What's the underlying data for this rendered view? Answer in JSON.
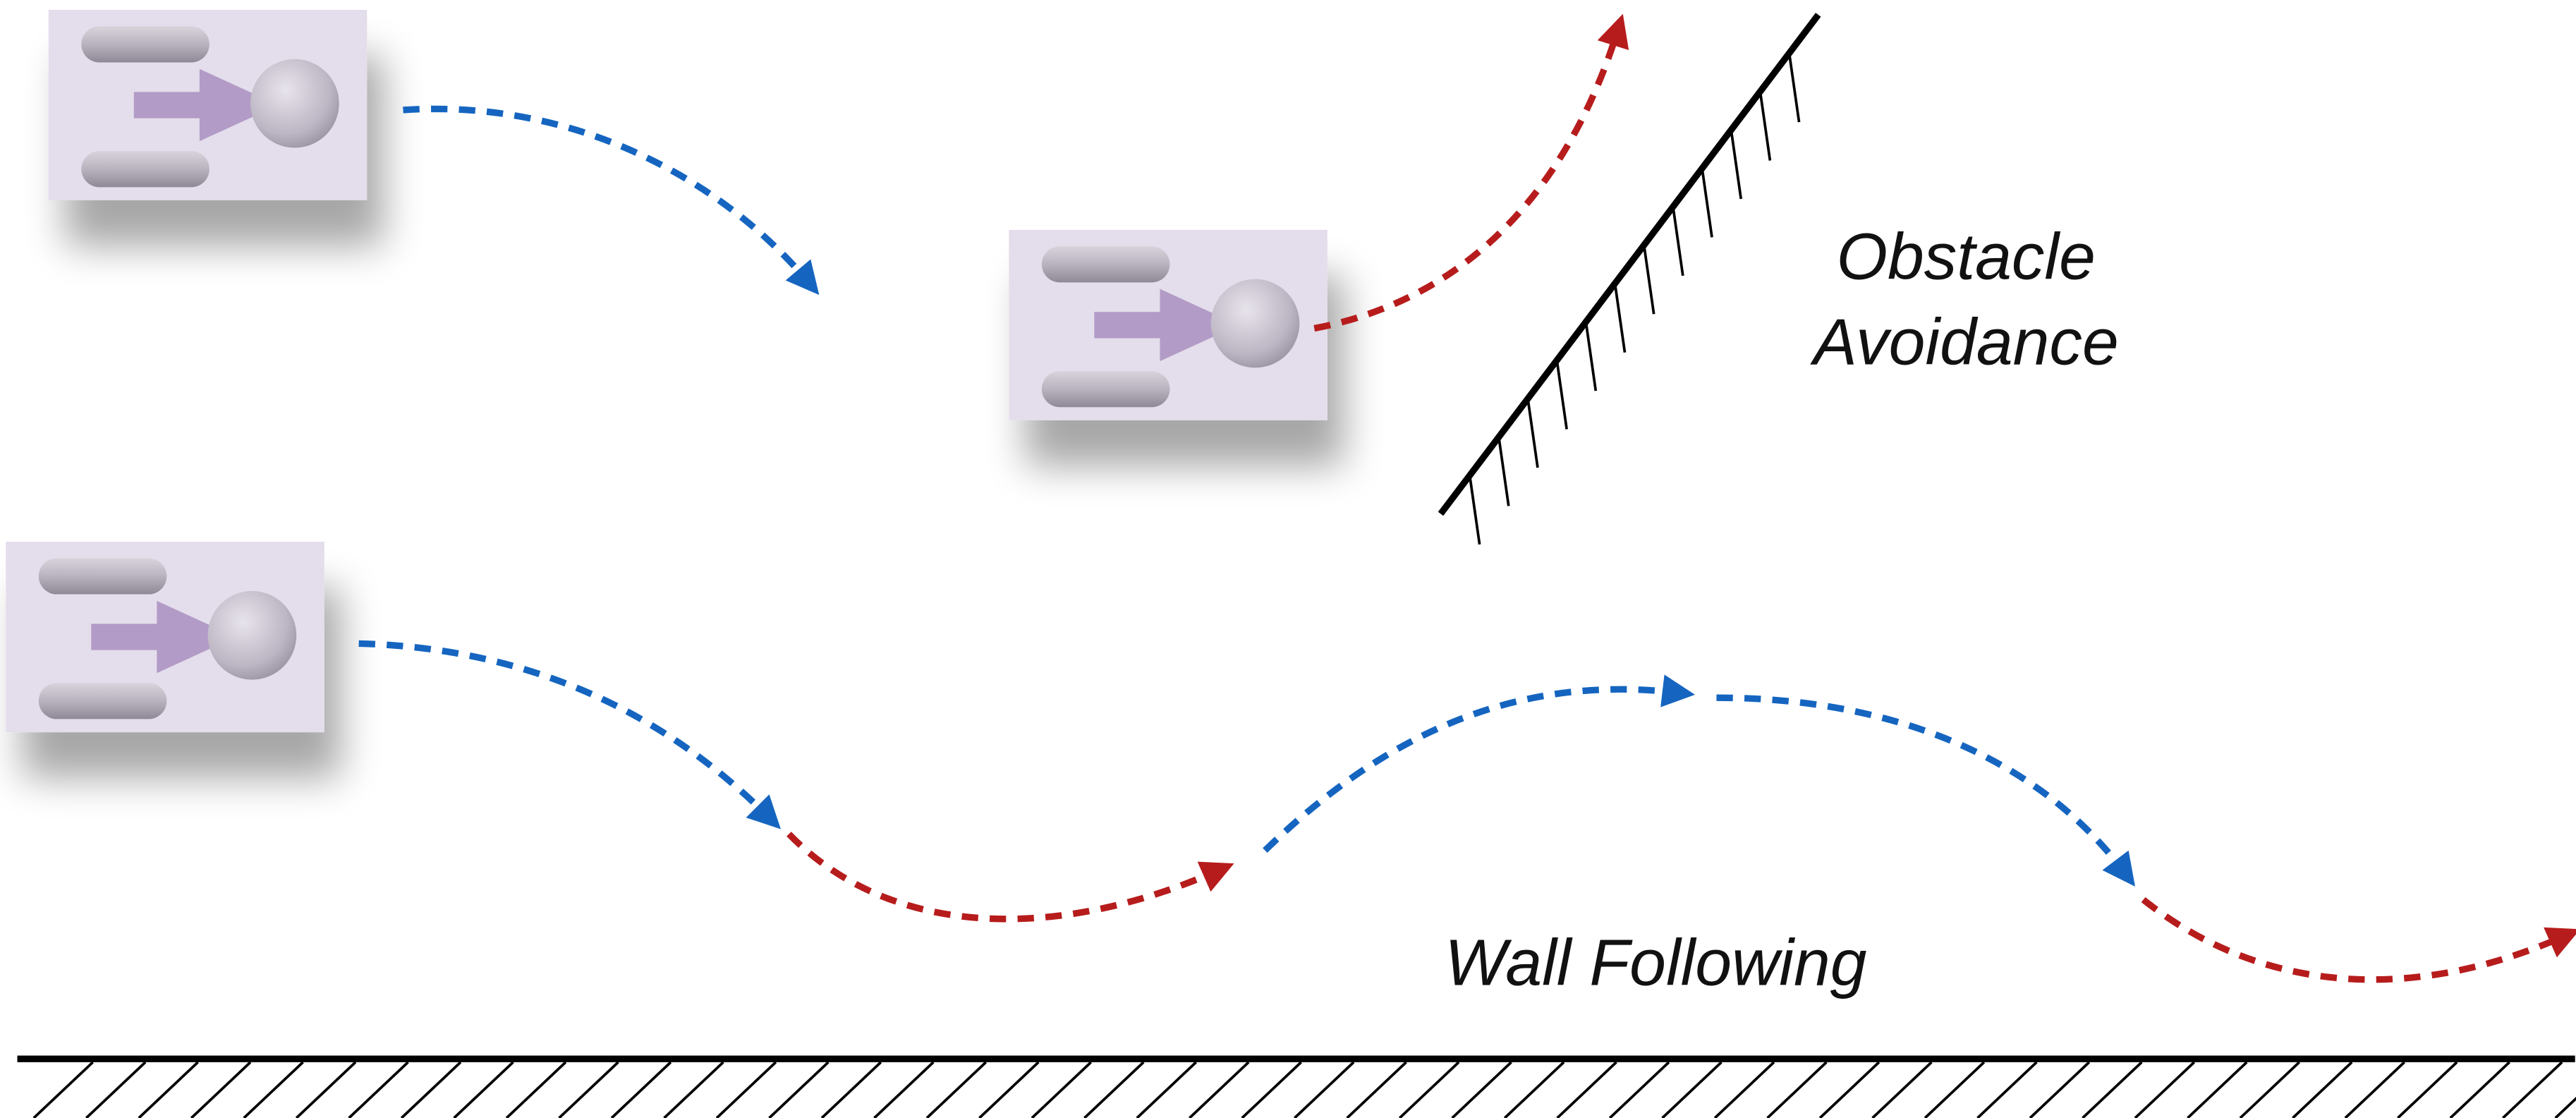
{
  "obstacle_label": {
    "lines": [
      "Obstacle",
      "Avoidance"
    ]
  },
  "wall_label": "Wall Following"
}
